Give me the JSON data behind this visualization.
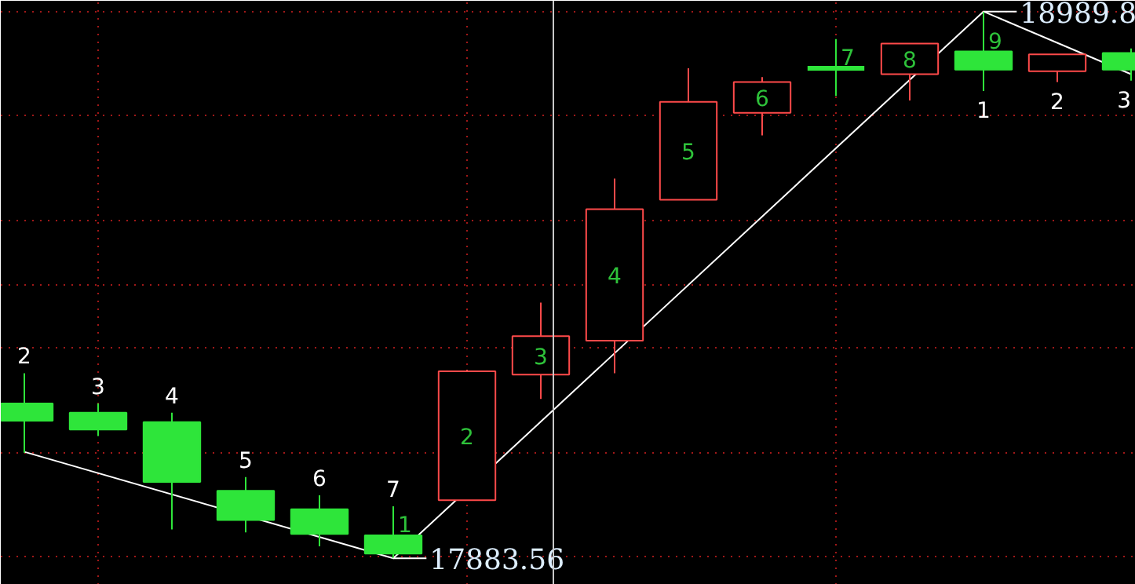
{
  "chart_data": {
    "type": "candlestick",
    "categories": [
      null,
      null,
      null,
      null,
      null,
      null,
      null,
      null,
      null,
      null,
      null,
      null,
      null,
      null,
      null,
      null
    ],
    "ohlc": [
      [
        18197,
        18258,
        18097,
        18162
      ],
      [
        18178,
        18197,
        18131,
        18144
      ],
      [
        18159,
        18178,
        17942,
        18038
      ],
      [
        18020,
        18048,
        17936,
        17961
      ],
      [
        17983,
        18011,
        17908,
        17933
      ],
      [
        17930,
        17989,
        17883.56,
        17893
      ],
      [
        18001,
        18265,
        18001,
        18262
      ],
      [
        18255,
        18401,
        18206,
        18333
      ],
      [
        18324,
        18652,
        18258,
        18590
      ],
      [
        18609,
        18875,
        18609,
        18807
      ],
      [
        18785,
        18857,
        18739,
        18847
      ],
      [
        18875,
        18934,
        18819,
        18875
      ],
      [
        18863,
        18925,
        18810,
        18925
      ],
      [
        18909,
        18989.8,
        18829,
        18872
      ],
      [
        18869,
        18903,
        18847,
        18903
      ],
      [
        18906,
        18915,
        18850,
        18872
      ]
    ],
    "value_labels": [
      null,
      null,
      null,
      null,
      null,
      "1",
      "2",
      "3",
      "4",
      "5",
      "6",
      "7",
      "8",
      "9",
      null,
      null
    ],
    "series": [
      {
        "type": "line",
        "color": "#ffffff",
        "values": [
          18099,
          null,
          null,
          null,
          null,
          17883.56,
          null,
          null,
          null,
          null,
          null,
          null,
          null,
          18989.8,
          null,
          18863
        ]
      }
    ],
    "ylim": [
      17830,
      19011.5
    ],
    "yticks": [
      {
        "value": 17887,
        "label": null
      },
      {
        "value": 18097,
        "label": null
      },
      {
        "value": 18308,
        "label": null
      },
      {
        "value": 18438,
        "label": null
      },
      {
        "value": 18568,
        "label": null
      },
      {
        "value": 18779,
        "label": null
      },
      {
        "value": 18989.8,
        "label": null
      }
    ],
    "grid": true,
    "tick_labels": false,
    "annotations": [
      "18989.8",
      "17883.56",
      {
        "text": "2",
        "y": 18258
      },
      {
        "text": "3",
        "y": 18197
      },
      {
        "text": "4",
        "y": 18178
      },
      {
        "text": "5",
        "y": 18048
      },
      {
        "text": "6",
        "y": 18011
      },
      {
        "text": "7",
        "y": 17989
      },
      {
        "text": "1",
        "y": 18829
      },
      {
        "text": "2",
        "y": 18847
      },
      {
        "text": "3",
        "y": 18850
      }
    ]
  }
}
